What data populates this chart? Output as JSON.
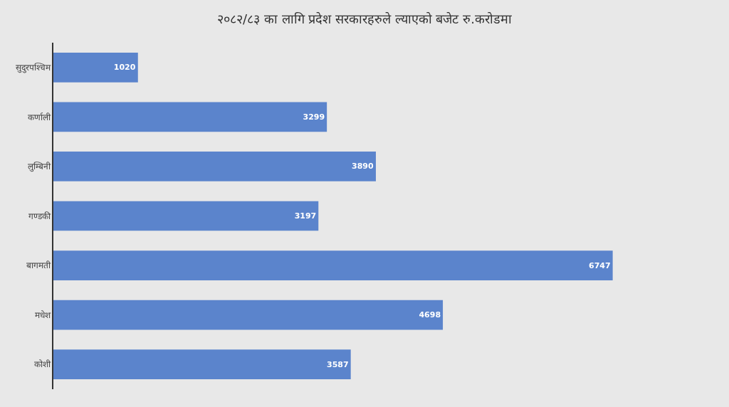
{
  "chart_data": {
    "type": "bar",
    "orientation": "horizontal",
    "title": "२०८२/८३ का लागि प्रदेश सरकारहरुले ल्याएको बजेट रु.करोडमा",
    "categories": [
      "सुदुरपश्चिम",
      "कर्णाली",
      "लुम्बिनी",
      "गण्डकी",
      "बागमती",
      "मधेश",
      "कोशी"
    ],
    "values": [
      1020,
      3299,
      3890,
      3197,
      6747,
      4698,
      3587
    ],
    "color": "#5b84cc",
    "data_labels": true,
    "tick_labels": "y",
    "grid": false,
    "legend": false
  }
}
